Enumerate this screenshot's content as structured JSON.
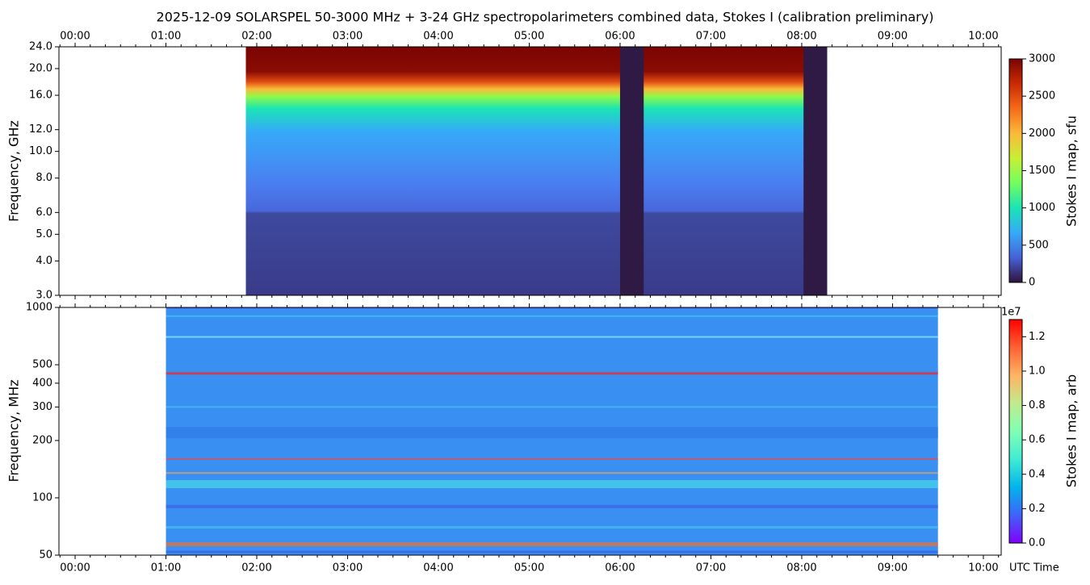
{
  "chart_data": [
    {
      "type": "heatmap",
      "title": "2025-12-09  SOLARSPEL  50-3000 MHz  +  3-24 GHz  spectropolarimeters combined data,  Stokes I  (calibration preliminary)",
      "ylabel": "Frequency, GHz",
      "log_y": true,
      "xlim": [
        -0.178,
        10.196
      ],
      "xticks": [
        {
          "value": 0,
          "label": "00:00"
        },
        {
          "value": 1,
          "label": "01:00"
        },
        {
          "value": 2,
          "label": "02:00"
        },
        {
          "value": 3,
          "label": "03:00"
        },
        {
          "value": 4,
          "label": "04:00"
        },
        {
          "value": 5,
          "label": "05:00"
        },
        {
          "value": 6,
          "label": "06:00"
        },
        {
          "value": 7,
          "label": "07:00"
        },
        {
          "value": 8,
          "label": "08:00"
        },
        {
          "value": 9,
          "label": "09:00"
        },
        {
          "value": 10,
          "label": "10:00"
        }
      ],
      "xtick_labels_top": true,
      "ylim": [
        3,
        24
      ],
      "yticks": [
        {
          "value": 3,
          "label": "3.0"
        },
        {
          "value": 4,
          "label": "4.0"
        },
        {
          "value": 5,
          "label": "5.0"
        },
        {
          "value": 6,
          "label": "6.0"
        },
        {
          "value": 8,
          "label": "8.0"
        },
        {
          "value": 10,
          "label": "10.0"
        },
        {
          "value": 12,
          "label": "12.0"
        },
        {
          "value": 16,
          "label": "16.0"
        },
        {
          "value": 20,
          "label": "20.0"
        },
        {
          "value": 24,
          "label": "24.0"
        }
      ],
      "data_span": [
        1.88,
        8.28
      ],
      "gaps": [
        [
          6.0,
          6.26
        ],
        [
          8.02,
          8.28
        ]
      ],
      "colorbar": {
        "label": "Stokes I map, sfu",
        "lim": [
          0,
          3000
        ],
        "ticks": [
          0,
          500,
          1000,
          1500,
          2000,
          2500,
          3000
        ],
        "colormap": [
          "#30123b",
          "#4662d7",
          "#36aaf9",
          "#1ae4b6",
          "#72fe5e",
          "#c8ef34",
          "#faba39",
          "#f66b19",
          "#ca2a04",
          "#7a0403"
        ]
      }
    },
    {
      "type": "heatmap",
      "ylabel": "Frequency, MHz",
      "xlabel": "UTC Time",
      "log_y": true,
      "xlim": [
        -0.178,
        10.196
      ],
      "xticks": [
        {
          "value": 0,
          "label": "00:00"
        },
        {
          "value": 1,
          "label": "01:00"
        },
        {
          "value": 2,
          "label": "02:00"
        },
        {
          "value": 3,
          "label": "03:00"
        },
        {
          "value": 4,
          "label": "04:00"
        },
        {
          "value": 5,
          "label": "05:00"
        },
        {
          "value": 6,
          "label": "06:00"
        },
        {
          "value": 7,
          "label": "07:00"
        },
        {
          "value": 8,
          "label": "08:00"
        },
        {
          "value": 9,
          "label": "09:00"
        },
        {
          "value": 10,
          "label": "10:00"
        }
      ],
      "xtick_labels_top": false,
      "ylim": [
        50,
        1000
      ],
      "yticks": [
        50,
        100,
        200,
        300,
        400,
        500,
        1000
      ],
      "data_span": [
        1.0,
        9.5
      ],
      "colorbar": {
        "label": "Stokes I map, arb",
        "lim": [
          0,
          1.3
        ],
        "offset_label": "1e7",
        "ticks": [
          {
            "value": 0,
            "label": "0.0"
          },
          0.2,
          0.4,
          0.6,
          0.8,
          {
            "value": 1,
            "label": "1.0"
          },
          1.2
        ],
        "colormap": [
          "#8000ff",
          "#4062fa",
          "#00b5eb",
          "#40ecd4",
          "#80ffb4",
          "#c0eb8d",
          "#ffb462",
          "#ff6232",
          "#ff0000"
        ]
      }
    }
  ]
}
